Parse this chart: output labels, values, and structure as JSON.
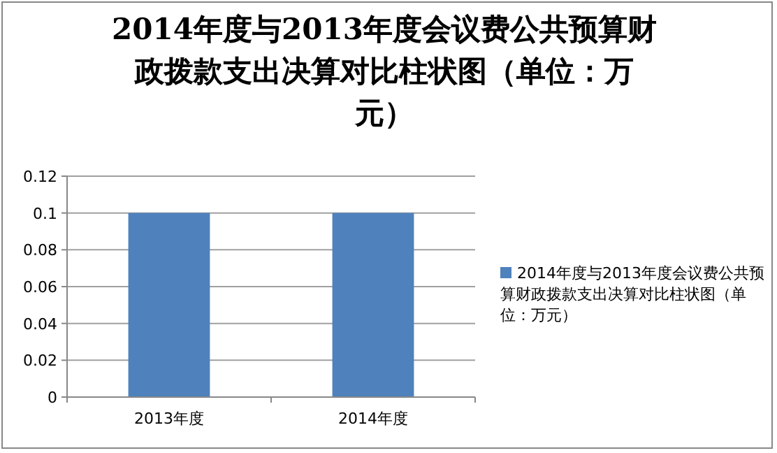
{
  "chart_data": {
    "type": "bar",
    "title": "2014年度与2013年度会议费公共预算财政拨款支出决算对比柱状图（单位：万元）",
    "categories": [
      "2013年度",
      "2014年度"
    ],
    "series": [
      {
        "name": "2014年度与2013年度会议费公共预算财政拨款支出决算对比柱状图（单位：万元）",
        "color": "#4f81bd",
        "values": [
          0.1,
          0.1
        ]
      }
    ],
    "ylim": [
      0,
      0.12
    ],
    "yticks": [
      0,
      0.02,
      0.04,
      0.06,
      0.08,
      0.1,
      0.12
    ],
    "grid": "y",
    "legend": "right"
  }
}
